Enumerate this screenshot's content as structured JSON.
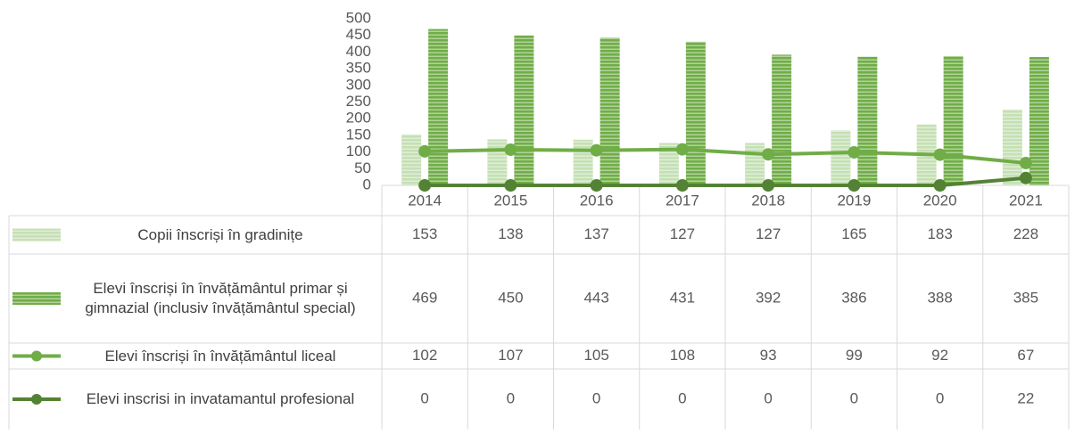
{
  "chart_data": {
    "type": "bar_line_table",
    "categories": [
      "2014",
      "2015",
      "2016",
      "2017",
      "2018",
      "2019",
      "2020",
      "2021"
    ],
    "series": [
      {
        "name": "Copii înscriși în gradinițe",
        "type": "bar",
        "color": "#c5e0b4",
        "values": [
          153,
          138,
          137,
          127,
          127,
          165,
          183,
          228
        ]
      },
      {
        "name": "Elevi înscriși în învățământul primar și gimnazial (inclusiv învățământul special)",
        "type": "bar",
        "color": "#70ad47",
        "values": [
          469,
          450,
          443,
          431,
          392,
          386,
          388,
          385
        ]
      },
      {
        "name": "Elevi înscriși în învățământul liceal",
        "type": "line",
        "color": "#70ad47",
        "values": [
          102,
          107,
          105,
          108,
          93,
          99,
          92,
          67
        ]
      },
      {
        "name": "Elevi inscrisi in invatamantul profesional",
        "type": "line",
        "color": "#548235",
        "values": [
          0,
          0,
          0,
          0,
          0,
          0,
          0,
          22
        ]
      }
    ],
    "ylim": [
      0,
      500
    ],
    "yticks": [
      0,
      50,
      100,
      150,
      200,
      250,
      300,
      350,
      400,
      450,
      500
    ]
  }
}
